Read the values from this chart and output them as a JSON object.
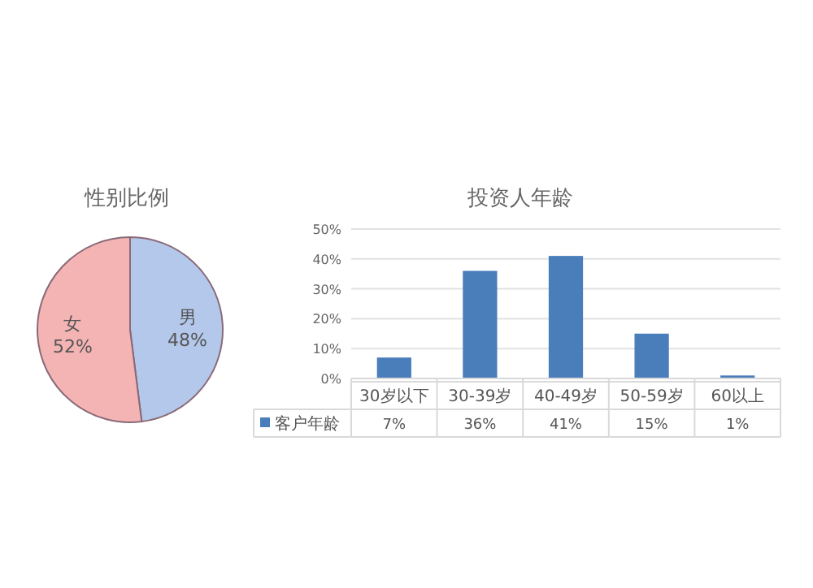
{
  "chart_data": [
    {
      "type": "pie",
      "title": "性别比例",
      "categories": [
        "男",
        "女"
      ],
      "values": [
        48,
        52
      ],
      "value_labels": [
        "48%",
        "52%"
      ],
      "colors": [
        "#b4c8ec",
        "#f4b4b4"
      ]
    },
    {
      "type": "bar",
      "title": "投资人年龄",
      "categories": [
        "30岁以下",
        "30-39岁",
        "40-49岁",
        "50-59岁",
        "60以上"
      ],
      "series": [
        {
          "name": "客户年龄",
          "color": "#4a7ebb",
          "values": [
            7,
            36,
            41,
            15,
            1
          ],
          "value_labels": [
            "7%",
            "36%",
            "41%",
            "15%",
            "1%"
          ]
        }
      ],
      "ylim": [
        0,
        50
      ],
      "yticks": [
        {
          "value": 0,
          "label": "0%"
        },
        {
          "value": 10,
          "label": "10%"
        },
        {
          "value": 20,
          "label": "20%"
        },
        {
          "value": 30,
          "label": "30%"
        },
        {
          "value": 40,
          "label": "40%"
        },
        {
          "value": 50,
          "label": "50%"
        }
      ],
      "grid": "y",
      "legend": "bottom"
    }
  ]
}
